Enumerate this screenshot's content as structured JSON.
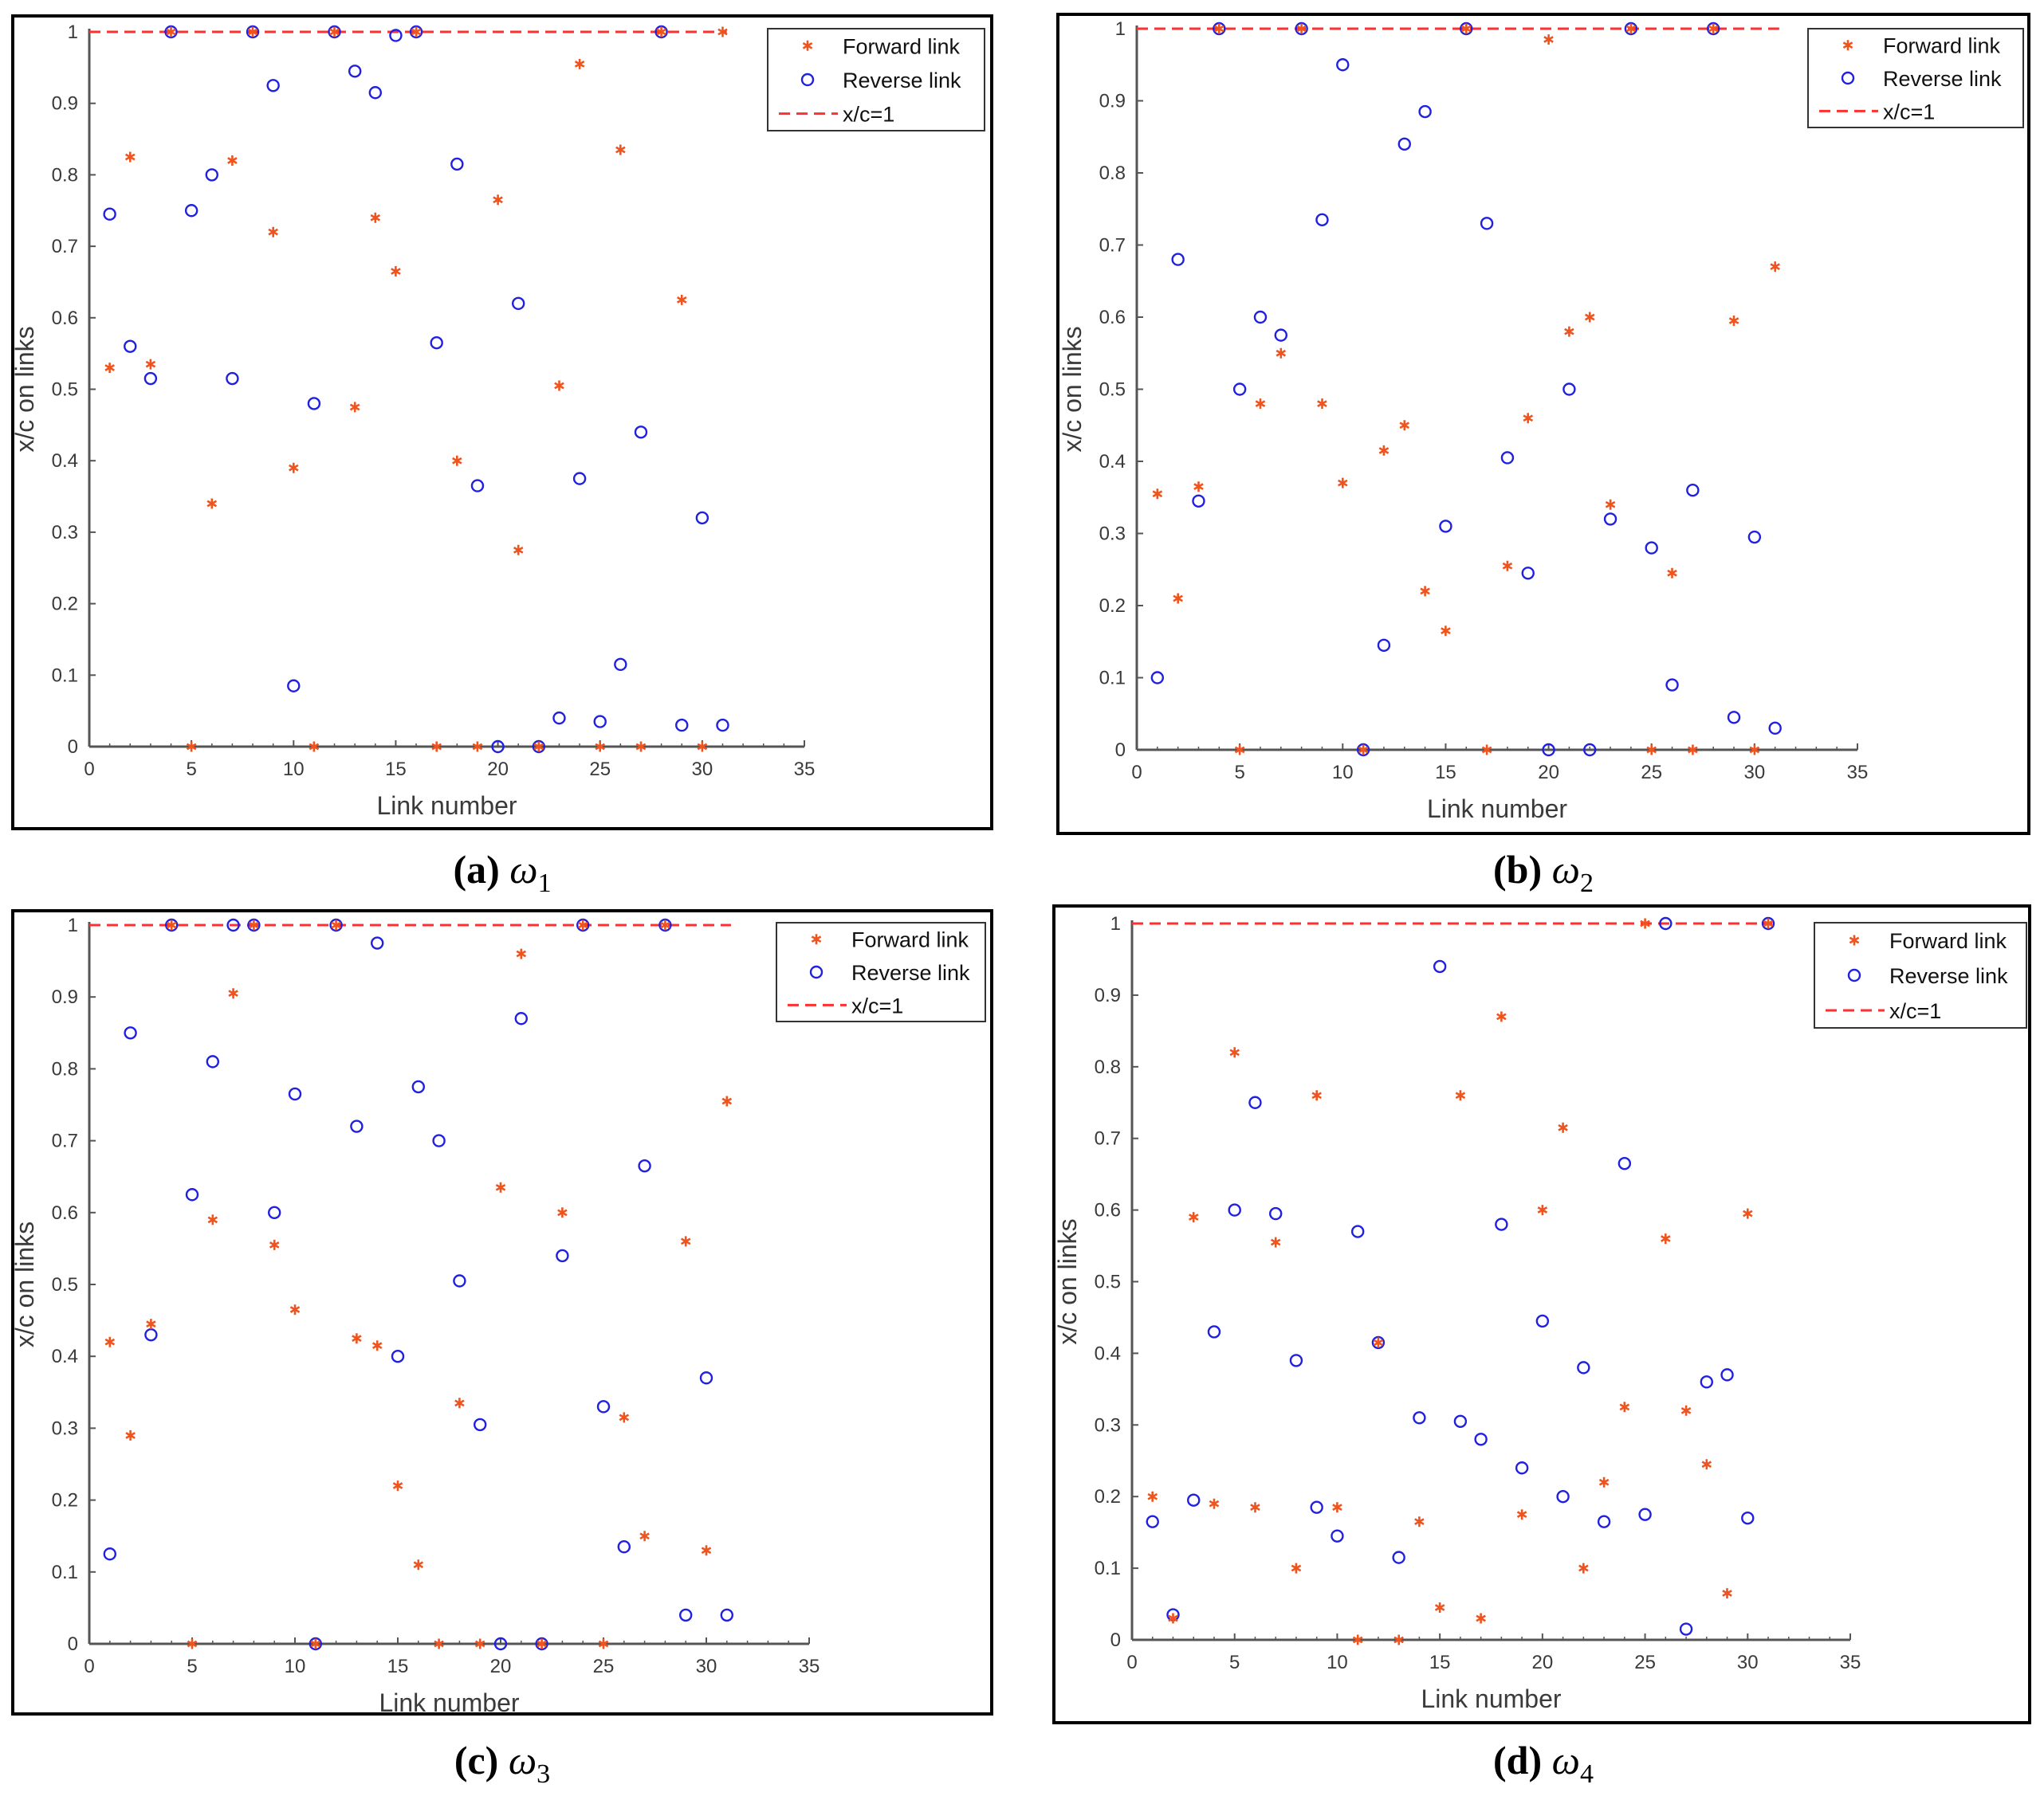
{
  "colors": {
    "forward": "#f0541e",
    "reverse": "#2020e0",
    "ref_line": "#ff3030",
    "axis": "#555555"
  },
  "common": {
    "xlabel": "Link number",
    "ylabel": "x/c on links",
    "xticks": [
      0,
      5,
      10,
      15,
      20,
      25,
      30,
      35
    ],
    "yticks": [
      "0",
      "0.1",
      "0.2",
      "0.3",
      "0.4",
      "0.5",
      "0.6",
      "0.7",
      "0.8",
      "0.9",
      "1"
    ],
    "legend": {
      "forward": "Forward link",
      "reverse": "Reverse link",
      "ref": "x/c=1"
    }
  },
  "chart_data": [
    {
      "type": "scatter",
      "panel": "a",
      "caption_label": "(a)",
      "caption_symbol": "ω",
      "caption_sub": "1",
      "xlim": [
        0,
        35
      ],
      "ylim": [
        0,
        1
      ],
      "legend_position": "top-right",
      "reference_line": {
        "name": "x/c=1",
        "y": 1
      },
      "series": [
        {
          "name": "Forward link",
          "marker": "star",
          "x": [
            1,
            2,
            3,
            4,
            5,
            6,
            7,
            8,
            9,
            10,
            11,
            12,
            13,
            14,
            15,
            16,
            17,
            18,
            19,
            20,
            21,
            22,
            23,
            24,
            25,
            26,
            27,
            28,
            29,
            30,
            31
          ],
          "y": [
            0.53,
            0.825,
            0.535,
            1,
            0,
            0.34,
            0.82,
            1,
            0.72,
            0.39,
            0,
            1,
            0.475,
            0.74,
            0.665,
            1,
            0,
            0.4,
            0,
            0.765,
            0.275,
            0,
            0.505,
            0.955,
            0,
            0.835,
            0,
            1,
            0.625,
            0,
            1
          ]
        },
        {
          "name": "Reverse link",
          "marker": "circle",
          "x": [
            1,
            2,
            3,
            4,
            5,
            6,
            7,
            8,
            9,
            10,
            11,
            12,
            13,
            14,
            15,
            16,
            17,
            18,
            19,
            20,
            21,
            22,
            23,
            24,
            25,
            26,
            27,
            28,
            29,
            30,
            31
          ],
          "y": [
            0.745,
            0.56,
            0.515,
            1,
            0.75,
            0.8,
            0.515,
            1,
            0.925,
            0.085,
            0.48,
            1,
            0.945,
            0.915,
            0.995,
            1,
            0.565,
            0.815,
            0.365,
            0,
            0.62,
            0,
            0.04,
            0.375,
            0.035,
            0.115,
            0.44,
            1,
            0.03,
            0.32,
            0.03
          ]
        }
      ]
    },
    {
      "type": "scatter",
      "panel": "b",
      "caption_label": "(b)",
      "caption_symbol": "ω",
      "caption_sub": "2",
      "xlim": [
        0,
        35
      ],
      "ylim": [
        0,
        1
      ],
      "legend_position": "top-right",
      "reference_line": {
        "name": "x/c=1",
        "y": 1
      },
      "series": [
        {
          "name": "Forward link",
          "marker": "star",
          "x": [
            1,
            2,
            3,
            4,
            5,
            6,
            7,
            8,
            9,
            10,
            11,
            12,
            13,
            14,
            15,
            16,
            17,
            18,
            19,
            20,
            21,
            22,
            23,
            24,
            25,
            26,
            27,
            28,
            29,
            30,
            31
          ],
          "y": [
            0.355,
            0.21,
            0.365,
            1,
            0,
            0.48,
            0.55,
            1,
            0.48,
            0.37,
            0,
            0.415,
            0.45,
            0.22,
            0.165,
            1,
            0,
            0.255,
            0.46,
            0.985,
            0.58,
            0.6,
            0.34,
            1,
            0,
            0.245,
            0,
            1,
            0.595,
            0,
            0.67
          ]
        },
        {
          "name": "Reverse link",
          "marker": "circle",
          "x": [
            1,
            2,
            3,
            4,
            5,
            6,
            7,
            8,
            9,
            10,
            11,
            12,
            13,
            14,
            15,
            16,
            17,
            18,
            19,
            20,
            21,
            22,
            23,
            24,
            25,
            26,
            27,
            28,
            29,
            30,
            31
          ],
          "y": [
            0.1,
            0.68,
            0.345,
            1,
            0.5,
            0.6,
            0.575,
            1,
            0.735,
            0.95,
            0,
            0.145,
            0.84,
            0.885,
            0.31,
            1,
            0.73,
            0.405,
            0.245,
            0,
            0.5,
            0,
            0.32,
            1,
            0.28,
            0.09,
            0.36,
            1,
            0.045,
            0.295,
            0.03
          ]
        }
      ]
    },
    {
      "type": "scatter",
      "panel": "c",
      "caption_label": "(c)",
      "caption_symbol": "ω",
      "caption_sub": "3",
      "xlim": [
        0,
        35
      ],
      "ylim": [
        0,
        1
      ],
      "legend_position": "top-right",
      "reference_line": {
        "name": "x/c=1",
        "y": 1
      },
      "series": [
        {
          "name": "Forward link",
          "marker": "star",
          "x": [
            1,
            2,
            3,
            4,
            5,
            6,
            7,
            8,
            9,
            10,
            11,
            12,
            13,
            14,
            15,
            16,
            17,
            18,
            19,
            20,
            21,
            22,
            23,
            24,
            25,
            26,
            27,
            28,
            29,
            30,
            31
          ],
          "y": [
            0.42,
            0.29,
            0.445,
            1,
            0,
            0.59,
            0.905,
            1,
            0.555,
            0.465,
            0,
            1,
            0.425,
            0.415,
            0.22,
            0.11,
            0,
            0.335,
            0,
            0.635,
            0.96,
            0,
            0.6,
            1,
            0,
            0.315,
            0.15,
            1,
            0.56,
            0.13,
            0.755
          ]
        },
        {
          "name": "Reverse link",
          "marker": "circle",
          "x": [
            1,
            2,
            3,
            4,
            5,
            6,
            7,
            8,
            9,
            10,
            11,
            12,
            13,
            14,
            15,
            16,
            17,
            18,
            19,
            20,
            21,
            22,
            23,
            24,
            25,
            26,
            27,
            28,
            29,
            30,
            31
          ],
          "y": [
            0.125,
            0.85,
            0.43,
            1,
            0.625,
            0.81,
            1,
            1,
            0.6,
            0.765,
            0,
            1,
            0.72,
            0.975,
            0.4,
            0.775,
            0.7,
            0.505,
            0.305,
            0,
            0.87,
            0,
            0.54,
            1,
            0.33,
            0.135,
            0.665,
            1,
            0.04,
            0.37,
            0.04
          ]
        }
      ]
    },
    {
      "type": "scatter",
      "panel": "d",
      "caption_label": "(d)",
      "caption_symbol": "ω",
      "caption_sub": "4",
      "xlim": [
        0,
        35
      ],
      "ylim": [
        0,
        1
      ],
      "legend_position": "top-right",
      "reference_line": {
        "name": "x/c=1",
        "y": 1
      },
      "series": [
        {
          "name": "Forward link",
          "marker": "star",
          "x": [
            1,
            2,
            3,
            4,
            5,
            6,
            7,
            8,
            9,
            10,
            11,
            12,
            13,
            14,
            15,
            16,
            17,
            18,
            19,
            20,
            21,
            22,
            23,
            24,
            25,
            26,
            27,
            28,
            29,
            30,
            31
          ],
          "y": [
            0.2,
            0.03,
            0.59,
            0.19,
            0.82,
            0.185,
            0.555,
            0.1,
            0.76,
            0.185,
            0,
            0.415,
            0,
            0.165,
            0.045,
            0.76,
            0.03,
            0.87,
            0.175,
            0.6,
            0.715,
            0.1,
            0.22,
            0.325,
            1,
            0.56,
            0.32,
            0.245,
            0.065,
            0.595,
            1
          ]
        },
        {
          "name": "Reverse link",
          "marker": "circle",
          "x": [
            1,
            2,
            3,
            4,
            5,
            6,
            7,
            8,
            9,
            10,
            11,
            12,
            13,
            14,
            15,
            16,
            17,
            18,
            19,
            20,
            21,
            22,
            23,
            24,
            25,
            26,
            27,
            28,
            29,
            30,
            31
          ],
          "y": [
            0.165,
            0.035,
            0.195,
            0.43,
            0.6,
            0.75,
            0.595,
            0.39,
            0.185,
            0.145,
            0.57,
            0.415,
            0.115,
            0.31,
            0.94,
            0.305,
            0.28,
            0.58,
            0.24,
            0.445,
            0.2,
            0.38,
            0.165,
            0.665,
            0.175,
            1,
            0.015,
            0.36,
            0.37,
            0.17,
            1
          ]
        }
      ]
    }
  ]
}
